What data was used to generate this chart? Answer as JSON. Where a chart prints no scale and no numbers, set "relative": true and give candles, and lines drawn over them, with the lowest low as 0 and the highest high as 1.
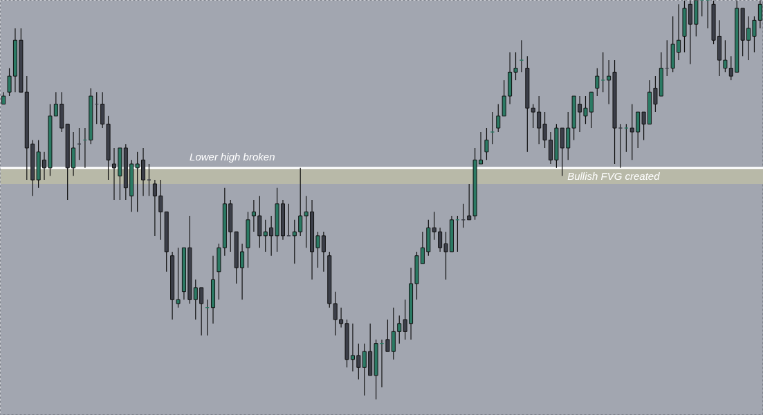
{
  "chart_data": {
    "type": "candlestick",
    "relative": true,
    "categories": [
      null,
      null,
      null,
      null,
      null,
      null,
      null,
      null,
      null,
      null,
      null,
      null,
      null,
      null,
      null,
      null,
      null,
      null,
      null,
      null,
      null,
      null,
      null,
      null,
      null,
      null,
      null,
      null,
      null,
      null,
      null,
      null,
      null,
      null,
      null,
      null,
      null,
      null,
      null,
      null,
      null,
      null,
      null,
      null,
      null,
      null,
      null,
      null,
      null,
      null,
      null,
      null,
      null,
      null,
      null,
      null,
      null,
      null,
      null,
      null,
      null,
      null,
      null,
      null,
      null,
      null,
      null,
      null,
      null,
      null,
      null,
      null,
      null,
      null,
      null,
      null,
      null,
      null,
      null,
      null,
      null,
      null,
      null,
      null,
      null,
      null,
      null,
      null,
      null,
      null,
      null,
      null,
      null,
      null,
      null,
      null,
      null,
      null,
      null,
      null,
      null,
      null,
      null,
      null,
      null,
      null,
      null,
      null,
      null,
      null,
      null,
      null,
      null,
      null,
      null,
      null,
      null,
      null,
      null,
      null,
      null,
      null,
      null,
      null,
      null,
      null,
      null,
      null,
      null,
      null,
      null
    ],
    "ohlc": [
      [
        0.74,
        0.77,
        0.74,
        0.76
      ],
      [
        0.77,
        0.83,
        0.76,
        0.81
      ],
      [
        0.81,
        0.93,
        0.77,
        0.9
      ],
      [
        0.9,
        0.93,
        0.77,
        0.77
      ],
      [
        0.77,
        0.81,
        0.55,
        0.63
      ],
      [
        0.64,
        0.65,
        0.51,
        0.55
      ],
      [
        0.55,
        0.65,
        0.53,
        0.62
      ],
      [
        0.6,
        0.62,
        0.55,
        0.58
      ],
      [
        0.58,
        0.74,
        0.56,
        0.71
      ],
      [
        0.71,
        0.77,
        0.71,
        0.74
      ],
      [
        0.74,
        0.77,
        0.67,
        0.68
      ],
      [
        0.69,
        0.69,
        0.5,
        0.58
      ],
      [
        0.58,
        0.67,
        0.56,
        0.63
      ],
      [
        0.64,
        0.68,
        0.6,
        0.64
      ],
      [
        0.65,
        0.68,
        0.58,
        0.65
      ],
      [
        0.65,
        0.78,
        0.64,
        0.76
      ],
      [
        0.74,
        0.77,
        0.69,
        0.74
      ],
      [
        0.74,
        0.77,
        0.68,
        0.69
      ],
      [
        0.69,
        0.71,
        0.55,
        0.6
      ],
      [
        0.59,
        0.63,
        0.5,
        0.58
      ],
      [
        0.56,
        0.63,
        0.5,
        0.63
      ],
      [
        0.63,
        0.64,
        0.5,
        0.53
      ],
      [
        0.51,
        0.6,
        0.47,
        0.59
      ],
      [
        0.58,
        0.62,
        0.47,
        0.59
      ],
      [
        0.6,
        0.63,
        0.51,
        0.55
      ],
      [
        0.55,
        0.59,
        0.51,
        0.55
      ],
      [
        0.54,
        0.55,
        0.41,
        0.51
      ],
      [
        0.51,
        0.55,
        0.4,
        0.47
      ],
      [
        0.47,
        0.47,
        0.32,
        0.37
      ],
      [
        0.36,
        0.37,
        0.2,
        0.25
      ],
      [
        0.24,
        0.38,
        0.23,
        0.25
      ],
      [
        0.27,
        0.38,
        0.25,
        0.38
      ],
      [
        0.38,
        0.46,
        0.24,
        0.25
      ],
      [
        0.25,
        0.3,
        0.2,
        0.28
      ],
      [
        0.28,
        0.28,
        0.16,
        0.24
      ],
      [
        0.23,
        0.25,
        0.16,
        0.23
      ],
      [
        0.23,
        0.36,
        0.19,
        0.3
      ],
      [
        0.32,
        0.39,
        0.25,
        0.38
      ],
      [
        0.38,
        0.53,
        0.36,
        0.49
      ],
      [
        0.49,
        0.5,
        0.37,
        0.42
      ],
      [
        0.42,
        0.42,
        0.29,
        0.33
      ],
      [
        0.33,
        0.39,
        0.25,
        0.37
      ],
      [
        0.38,
        0.47,
        0.33,
        0.45
      ],
      [
        0.46,
        0.5,
        0.42,
        0.47
      ],
      [
        0.46,
        0.51,
        0.38,
        0.41
      ],
      [
        0.41,
        0.45,
        0.37,
        0.42
      ],
      [
        0.43,
        0.46,
        0.36,
        0.41
      ],
      [
        0.41,
        0.53,
        0.37,
        0.49
      ],
      [
        0.49,
        0.5,
        0.4,
        0.41
      ],
      [
        0.41,
        0.49,
        0.41,
        0.41
      ],
      [
        0.41,
        0.45,
        0.34,
        0.42
      ],
      [
        0.42,
        0.58,
        0.41,
        0.46
      ],
      [
        0.46,
        0.51,
        0.38,
        0.47
      ],
      [
        0.47,
        0.5,
        0.3,
        0.37
      ],
      [
        0.38,
        0.42,
        0.33,
        0.41
      ],
      [
        0.41,
        0.42,
        0.32,
        0.37
      ],
      [
        0.36,
        0.37,
        0.23,
        0.24
      ],
      [
        0.24,
        0.27,
        0.16,
        0.2
      ],
      [
        0.2,
        0.23,
        0.18,
        0.19
      ],
      [
        0.19,
        0.2,
        0.08,
        0.1
      ],
      [
        0.1,
        0.19,
        0.07,
        0.11
      ],
      [
        0.11,
        0.14,
        0.05,
        0.08
      ],
      [
        0.08,
        0.14,
        0.01,
        0.12
      ],
      [
        0.12,
        0.19,
        0.06,
        0.06
      ],
      [
        0.06,
        0.15,
        0.0,
        0.14
      ],
      [
        0.14,
        0.15,
        0.03,
        0.14
      ],
      [
        0.15,
        0.2,
        0.12,
        0.12
      ],
      [
        0.12,
        0.23,
        0.1,
        0.17
      ],
      [
        0.17,
        0.21,
        0.14,
        0.19
      ],
      [
        0.2,
        0.25,
        0.15,
        0.17
      ],
      [
        0.19,
        0.33,
        0.15,
        0.29
      ],
      [
        0.29,
        0.37,
        0.25,
        0.36
      ],
      [
        0.34,
        0.42,
        0.34,
        0.38
      ],
      [
        0.37,
        0.45,
        0.36,
        0.43
      ],
      [
        0.43,
        0.47,
        0.4,
        0.42
      ],
      [
        0.42,
        0.43,
        0.37,
        0.38
      ],
      [
        0.39,
        0.42,
        0.3,
        0.37
      ],
      [
        0.37,
        0.46,
        0.37,
        0.45
      ],
      [
        0.45,
        0.46,
        0.37,
        0.45
      ],
      [
        0.45,
        0.49,
        0.43,
        0.45
      ],
      [
        0.46,
        0.54,
        0.45,
        0.45
      ],
      [
        0.46,
        0.63,
        0.45,
        0.6
      ],
      [
        0.59,
        0.67,
        0.59,
        0.6
      ],
      [
        0.62,
        0.68,
        0.6,
        0.65
      ],
      [
        0.67,
        0.72,
        0.64,
        0.67
      ],
      [
        0.68,
        0.74,
        0.67,
        0.71
      ],
      [
        0.71,
        0.8,
        0.71,
        0.76
      ],
      [
        0.76,
        0.87,
        0.74,
        0.82
      ],
      [
        0.82,
        0.87,
        0.8,
        0.83
      ],
      [
        0.85,
        0.9,
        0.82,
        0.85
      ],
      [
        0.83,
        0.86,
        0.62,
        0.73
      ],
      [
        0.73,
        0.74,
        0.68,
        0.72
      ],
      [
        0.72,
        0.76,
        0.64,
        0.68
      ],
      [
        0.69,
        0.72,
        0.63,
        0.65
      ],
      [
        0.65,
        0.67,
        0.59,
        0.6
      ],
      [
        0.6,
        0.69,
        0.58,
        0.68
      ],
      [
        0.68,
        0.68,
        0.56,
        0.63
      ],
      [
        0.63,
        0.72,
        0.6,
        0.68
      ],
      [
        0.68,
        0.76,
        0.65,
        0.76
      ],
      [
        0.74,
        0.76,
        0.67,
        0.72
      ],
      [
        0.71,
        0.76,
        0.69,
        0.73
      ],
      [
        0.72,
        0.77,
        0.68,
        0.77
      ],
      [
        0.78,
        0.83,
        0.76,
        0.81
      ],
      [
        0.8,
        0.87,
        0.77,
        0.8
      ],
      [
        0.8,
        0.85,
        0.74,
        0.81
      ],
      [
        0.82,
        0.85,
        0.59,
        0.68
      ],
      [
        0.68,
        0.69,
        0.58,
        0.68
      ],
      [
        0.68,
        0.69,
        0.62,
        0.68
      ],
      [
        0.68,
        0.74,
        0.6,
        0.67
      ],
      [
        0.67,
        0.72,
        0.63,
        0.72
      ],
      [
        0.72,
        0.72,
        0.65,
        0.69
      ],
      [
        0.69,
        0.8,
        0.69,
        0.77
      ],
      [
        0.78,
        0.81,
        0.72,
        0.74
      ],
      [
        0.76,
        0.87,
        0.76,
        0.83
      ],
      [
        0.83,
        0.9,
        0.81,
        0.83
      ],
      [
        0.83,
        0.96,
        0.82,
        0.89
      ],
      [
        0.87,
        0.99,
        0.85,
        0.9
      ],
      [
        0.91,
        1.0,
        0.87,
        0.98
      ],
      [
        0.99,
        1.0,
        0.84,
        0.94
      ],
      [
        0.94,
        1.0,
        0.91,
        1.0
      ],
      [
        1.0,
        1.0,
        0.96,
        1.0
      ],
      [
        1.0,
        1.0,
        0.93,
        1.0
      ],
      [
        0.99,
        1.0,
        0.89,
        0.9
      ],
      [
        0.91,
        0.95,
        0.81,
        0.85
      ],
      [
        0.83,
        0.9,
        0.82,
        0.85
      ],
      [
        0.83,
        0.86,
        0.8,
        0.81
      ],
      [
        0.82,
        1.0,
        0.82,
        0.98
      ],
      [
        0.98,
        0.98,
        0.86,
        0.9
      ],
      [
        0.9,
        0.96,
        0.85,
        0.93
      ],
      [
        0.91,
        0.96,
        0.87,
        0.95
      ],
      [
        0.95,
        1.0,
        0.93,
        0.99
      ]
    ],
    "colors": [
      "#2b7a64",
      "#2b7a64",
      "#2b7a64",
      "#3b3e48",
      "#3b3e48",
      "#3b3e48",
      "#2b7a64",
      "#3b3e48",
      "#2b7a64",
      "#2b7a64",
      "#3b3e48",
      "#3b3e48",
      "#2b7a64",
      "#3b3e48",
      "#2b7a64",
      "#2b7a64",
      "#3b3e48",
      "#3b3e48",
      "#3b3e48",
      "#3b3e48",
      "#2b7a64",
      "#3b3e48",
      "#2b7a64",
      "#2b7a64",
      "#3b3e48",
      "#3b3e48",
      "#3b3e48",
      "#3b3e48",
      "#3b3e48",
      "#3b3e48",
      "#2b7a64",
      "#2b7a64",
      "#3b3e48",
      "#2b7a64",
      "#3b3e48",
      "#2b7a64",
      "#2b7a64",
      "#2b7a64",
      "#2b7a64",
      "#3b3e48",
      "#3b3e48",
      "#2b7a64",
      "#2b7a64",
      "#2b7a64",
      "#3b3e48",
      "#2b7a64",
      "#3b3e48",
      "#2b7a64",
      "#3b3e48",
      "#3b3e48",
      "#2b7a64",
      "#2b7a64",
      "#2b7a64",
      "#3b3e48",
      "#2b7a64",
      "#3b3e48",
      "#3b3e48",
      "#3b3e48",
      "#3b3e48",
      "#3b3e48",
      "#2b7a64",
      "#3b3e48",
      "#2b7a64",
      "#3b3e48",
      "#2b7a64",
      "#2b7a64",
      "#3b3e48",
      "#2b7a64",
      "#2b7a64",
      "#3b3e48",
      "#2b7a64",
      "#2b7a64",
      "#2b7a64",
      "#2b7a64",
      "#3b3e48",
      "#3b3e48",
      "#3b3e48",
      "#2b7a64",
      "#2b7a64",
      "#3b3e48",
      "#3b3e48",
      "#2b7a64",
      "#2b7a64",
      "#2b7a64",
      "#2b7a64",
      "#2b7a64",
      "#2b7a64",
      "#2b7a64",
      "#2b7a64",
      "#2b7a64",
      "#3b3e48",
      "#3b3e48",
      "#3b3e48",
      "#3b3e48",
      "#3b3e48",
      "#2b7a64",
      "#3b3e48",
      "#2b7a64",
      "#2b7a64",
      "#3b3e48",
      "#2b7a64",
      "#2b7a64",
      "#2b7a64",
      "#2b7a64",
      "#2b7a64",
      "#3b3e48",
      "#3b3e48",
      "#2b7a64",
      "#3b3e48",
      "#2b7a64",
      "#3b3e48",
      "#2b7a64",
      "#3b3e48",
      "#2b7a64",
      "#3b3e48",
      "#2b7a64",
      "#2b7a64",
      "#2b7a64",
      "#3b3e48",
      "#2b7a64",
      "#2b7a64",
      "#2b7a64",
      "#3b3e48",
      "#3b3e48",
      "#2b7a64",
      "#3b3e48",
      "#2b7a64",
      "#3b3e48",
      "#2b7a64",
      "#2b7a64",
      "#2b7a64"
    ],
    "ref_lines": [
      {
        "axis": "y",
        "value": 0.58,
        "label": "Lower high broken",
        "color": "#ffffff"
      }
    ],
    "bands": [
      {
        "axis": "y",
        "from": 0.54,
        "to": 0.58,
        "label": "Bullish FVG created",
        "color": "#b8b9a8"
      }
    ]
  }
}
